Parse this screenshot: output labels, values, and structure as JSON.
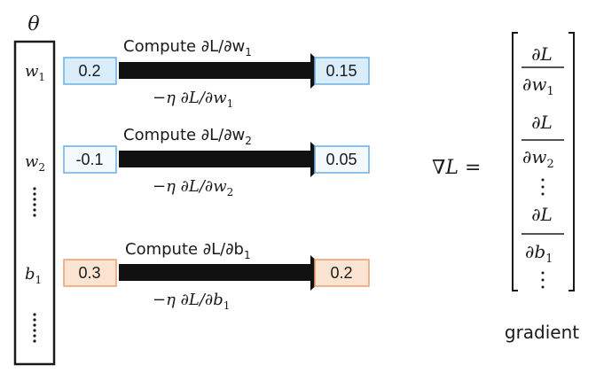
{
  "colors": {
    "blue_fill": "#d9ecfa",
    "blue_stroke": "#6aaee0",
    "orange_fill": "#fbe3d2",
    "orange_stroke": "#e6a070",
    "pale_fill": "#f4f9fd",
    "arrow": "#111111",
    "ink": "#1a1a1a"
  },
  "theta_label": "θ",
  "params": {
    "w1": {
      "name": "w",
      "sub": "1",
      "value": "0.2",
      "updated": "0.15",
      "compute": "Compute ∂L/∂w",
      "compute_sub": "1",
      "update": "−η ∂L/∂w",
      "update_sub": "1"
    },
    "w2": {
      "name": "w",
      "sub": "2",
      "value": "-0.1",
      "updated": "0.05",
      "compute": "Compute ∂L/∂w",
      "compute_sub": "2",
      "update": "−η ∂L/∂w",
      "update_sub": "2"
    },
    "b1": {
      "name": "b",
      "sub": "1",
      "value": "0.3",
      "updated": "0.2",
      "compute": "Compute ∂L/∂b",
      "compute_sub": "1",
      "update": "−η ∂L/∂b",
      "update_sub": "1"
    }
  },
  "gradient": {
    "lhs": "∇L =",
    "num": "∂L",
    "den1": "∂w",
    "den1_sub": "1",
    "den2": "∂w",
    "den2_sub": "2",
    "den3": "∂b",
    "den3_sub": "1",
    "caption": "gradient"
  }
}
